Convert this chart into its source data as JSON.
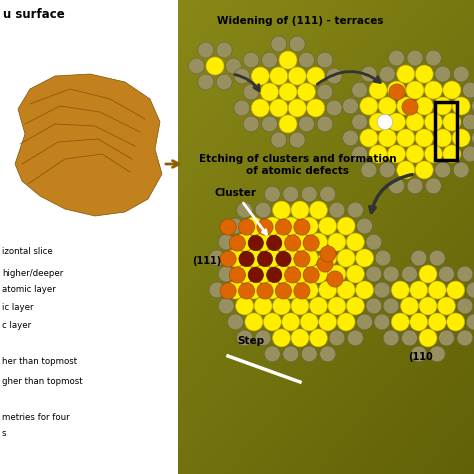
{
  "yellow_atom": "#ffee00",
  "yellow_atom_edge": "#ccaa00",
  "gray_atom": "#999060",
  "gray_atom_edge": "#666040",
  "orange_atom": "#cc4400",
  "orange_atom2": "#dd6600",
  "dark_red_atom": "#7a1200",
  "white_atom": "#ffffff",
  "bg_olive_dark": [
    0.38,
    0.38,
    0.03
  ],
  "bg_olive_light": [
    0.6,
    0.6,
    0.12
  ],
  "label_widening": "Widening of (111) - terraces",
  "label_etching": "Etching of clusters and formation\nof atomic defects",
  "label_cluster": "Cluster",
  "label_111": "(111)",
  "label_step": "Step",
  "label_110": "(110",
  "left_title": "u surface",
  "left_texts": [
    [
      2,
      218,
      "izontal slice"
    ],
    [
      2,
      196,
      "higher/deeper"
    ],
    [
      2,
      180,
      "atomic layer"
    ],
    [
      2,
      162,
      "ic layer"
    ],
    [
      2,
      144,
      "c layer"
    ],
    [
      2,
      108,
      "her than topmost"
    ],
    [
      2,
      88,
      "gher than topmost"
    ],
    [
      2,
      52,
      "metries for four"
    ],
    [
      2,
      36,
      "s"
    ]
  ]
}
